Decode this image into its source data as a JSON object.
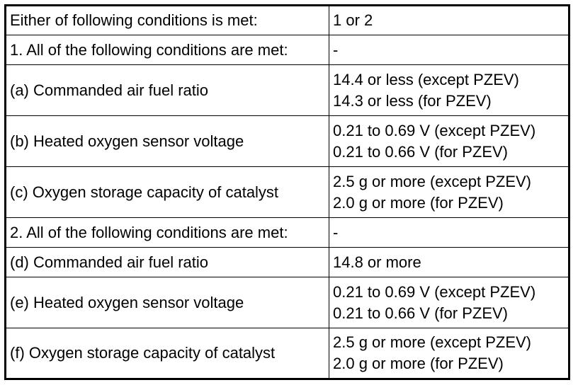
{
  "table": {
    "rows": [
      {
        "condition": "Either of following conditions is met:",
        "values": [
          "1 or 2"
        ]
      },
      {
        "condition": "1. All of the following conditions are met:",
        "values": [
          "-"
        ]
      },
      {
        "condition": "(a) Commanded air fuel ratio",
        "values": [
          "14.4 or less (except PZEV)",
          "14.3 or less (for PZEV)"
        ]
      },
      {
        "condition": "(b) Heated oxygen sensor voltage",
        "values": [
          "0.21 to 0.69 V (except PZEV)",
          "0.21 to 0.66 V (for PZEV)"
        ]
      },
      {
        "condition": "(c) Oxygen storage capacity of catalyst",
        "values": [
          "2.5 g or more (except PZEV)",
          "2.0 g or more (for PZEV)"
        ]
      },
      {
        "condition": "2. All of the following conditions are met:",
        "values": [
          "-"
        ]
      },
      {
        "condition": "(d) Commanded air fuel ratio",
        "values": [
          "14.8 or more"
        ]
      },
      {
        "condition": "(e) Heated oxygen sensor voltage",
        "values": [
          "0.21 to 0.69 V (except PZEV)",
          "0.21 to 0.66 V (for PZEV)"
        ]
      },
      {
        "condition": "(f) Oxygen storage capacity of catalyst",
        "values": [
          "2.5 g or more (except PZEV)",
          "2.0 g or more (for PZEV)"
        ]
      }
    ]
  }
}
